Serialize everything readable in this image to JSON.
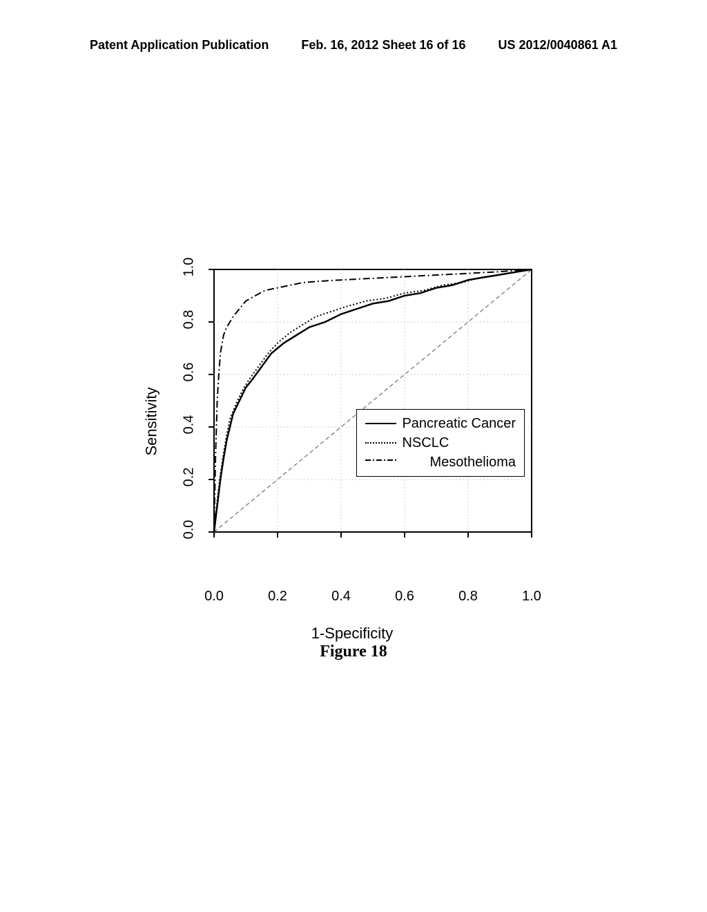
{
  "header": {
    "left": "Patent Application Publication",
    "center": "Feb. 16, 2012  Sheet 16 of 16",
    "right": "US 2012/0040861 A1"
  },
  "chart": {
    "type": "line",
    "title": "",
    "xlabel": "1-Specificity",
    "ylabel": "Sensitivity",
    "xlim": [
      0.0,
      1.0
    ],
    "ylim": [
      0.0,
      1.0
    ],
    "xticks": [
      0.0,
      0.2,
      0.4,
      0.6,
      0.8,
      1.0
    ],
    "yticks": [
      0.0,
      0.2,
      0.4,
      0.6,
      0.8,
      1.0
    ],
    "xtick_labels": [
      "0.0",
      "0.2",
      "0.4",
      "0.6",
      "0.8",
      "1.0"
    ],
    "ytick_labels": [
      "0.0",
      "0.2",
      "0.4",
      "0.6",
      "0.8",
      "1.0"
    ],
    "background_color": "#ffffff",
    "grid_color": "#cccccc",
    "grid_style": "dotted",
    "axis_color": "#000000",
    "axis_fontsize": 20,
    "label_fontsize": 22,
    "diagonal": {
      "color": "#888888",
      "style": "dashed",
      "width": 1
    },
    "series": [
      {
        "name": "Pancreatic Cancer",
        "style": "solid",
        "color": "#000000",
        "width": 2.5,
        "data": [
          [
            0.0,
            0.0
          ],
          [
            0.01,
            0.1
          ],
          [
            0.02,
            0.2
          ],
          [
            0.03,
            0.28
          ],
          [
            0.04,
            0.35
          ],
          [
            0.05,
            0.4
          ],
          [
            0.06,
            0.45
          ],
          [
            0.08,
            0.5
          ],
          [
            0.1,
            0.55
          ],
          [
            0.12,
            0.58
          ],
          [
            0.15,
            0.63
          ],
          [
            0.18,
            0.68
          ],
          [
            0.22,
            0.72
          ],
          [
            0.26,
            0.75
          ],
          [
            0.3,
            0.78
          ],
          [
            0.35,
            0.8
          ],
          [
            0.4,
            0.83
          ],
          [
            0.45,
            0.85
          ],
          [
            0.5,
            0.87
          ],
          [
            0.55,
            0.88
          ],
          [
            0.6,
            0.9
          ],
          [
            0.65,
            0.91
          ],
          [
            0.7,
            0.93
          ],
          [
            0.75,
            0.94
          ],
          [
            0.8,
            0.96
          ],
          [
            0.85,
            0.97
          ],
          [
            0.9,
            0.98
          ],
          [
            0.95,
            0.99
          ],
          [
            1.0,
            1.0
          ]
        ]
      },
      {
        "name": "NSCLC",
        "style": "dotted",
        "color": "#000000",
        "width": 2,
        "data": [
          [
            0.0,
            0.0
          ],
          [
            0.01,
            0.12
          ],
          [
            0.02,
            0.22
          ],
          [
            0.03,
            0.3
          ],
          [
            0.04,
            0.37
          ],
          [
            0.05,
            0.43
          ],
          [
            0.07,
            0.49
          ],
          [
            0.09,
            0.54
          ],
          [
            0.11,
            0.58
          ],
          [
            0.14,
            0.63
          ],
          [
            0.17,
            0.68
          ],
          [
            0.2,
            0.72
          ],
          [
            0.24,
            0.76
          ],
          [
            0.28,
            0.79
          ],
          [
            0.32,
            0.82
          ],
          [
            0.37,
            0.84
          ],
          [
            0.42,
            0.86
          ],
          [
            0.48,
            0.88
          ],
          [
            0.54,
            0.89
          ],
          [
            0.6,
            0.91
          ],
          [
            0.66,
            0.92
          ],
          [
            0.72,
            0.94
          ],
          [
            0.78,
            0.95
          ],
          [
            0.84,
            0.97
          ],
          [
            0.9,
            0.98
          ],
          [
            0.95,
            0.99
          ],
          [
            1.0,
            1.0
          ]
        ]
      },
      {
        "name": "Mesothelioma",
        "style": "dashdot",
        "color": "#000000",
        "width": 2,
        "data": [
          [
            0.0,
            0.0
          ],
          [
            0.005,
            0.3
          ],
          [
            0.01,
            0.5
          ],
          [
            0.015,
            0.6
          ],
          [
            0.02,
            0.68
          ],
          [
            0.03,
            0.75
          ],
          [
            0.04,
            0.78
          ],
          [
            0.06,
            0.82
          ],
          [
            0.08,
            0.85
          ],
          [
            0.1,
            0.88
          ],
          [
            0.13,
            0.9
          ],
          [
            0.16,
            0.92
          ],
          [
            0.2,
            0.93
          ],
          [
            0.24,
            0.94
          ],
          [
            0.28,
            0.95
          ],
          [
            0.33,
            0.955
          ],
          [
            0.4,
            0.96
          ],
          [
            0.48,
            0.965
          ],
          [
            0.56,
            0.97
          ],
          [
            0.64,
            0.975
          ],
          [
            0.72,
            0.98
          ],
          [
            0.8,
            0.985
          ],
          [
            0.88,
            0.99
          ],
          [
            0.94,
            0.995
          ],
          [
            1.0,
            1.0
          ]
        ]
      }
    ],
    "legend": {
      "position": "bottom-right",
      "items": [
        "Pancreatic Cancer",
        "NSCLC",
        "Mesothelioma"
      ],
      "fontsize": 20,
      "border_color": "#000000",
      "background": "#ffffff"
    }
  },
  "caption": "Figure 18"
}
